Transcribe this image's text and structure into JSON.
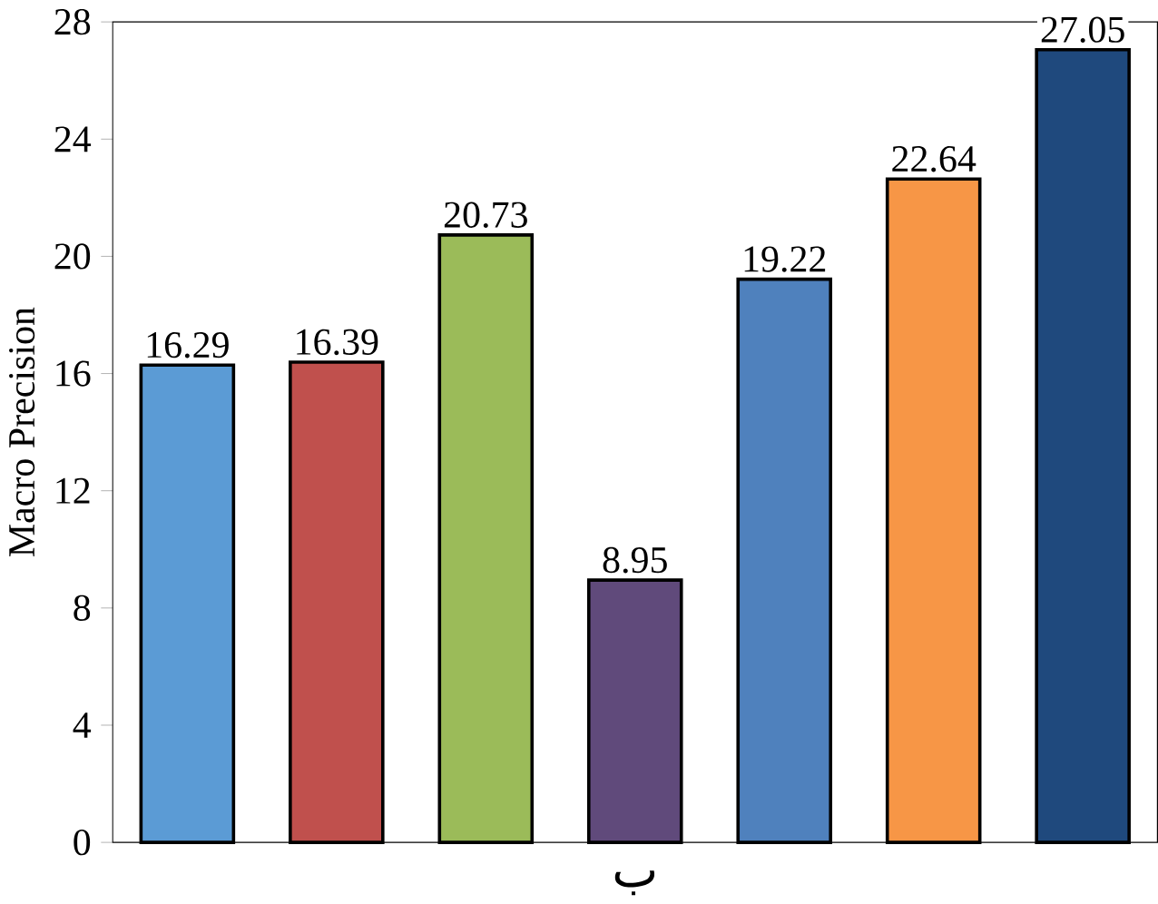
{
  "chart_data": {
    "type": "bar",
    "xlabel": "ب",
    "ylabel": "Macro Precision",
    "categories": [
      null,
      null,
      null,
      null,
      null,
      null,
      null
    ],
    "values": [
      16.29,
      16.39,
      20.73,
      8.95,
      19.22,
      22.64,
      27.05
    ],
    "colors": [
      "#5b9bd5",
      "#c0504d",
      "#9bbb59",
      "#604a7b",
      "#4f81bd",
      "#f79646",
      "#1f497d"
    ],
    "ylim": [
      0,
      28
    ],
    "yticks": [
      0,
      4,
      8,
      12,
      16,
      20,
      24,
      28
    ],
    "data_labels": true
  }
}
